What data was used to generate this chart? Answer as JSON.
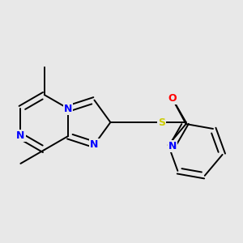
{
  "bg_color": "#e8e8e8",
  "bond_color": "#000000",
  "bond_width": 1.4,
  "n_color": "#0000ff",
  "s_color": "#cccc00",
  "o_color": "#ff0000",
  "font_size": 9.0,
  "xlim": [
    0.0,
    6.5
  ],
  "ylim": [
    0.5,
    5.5
  ]
}
